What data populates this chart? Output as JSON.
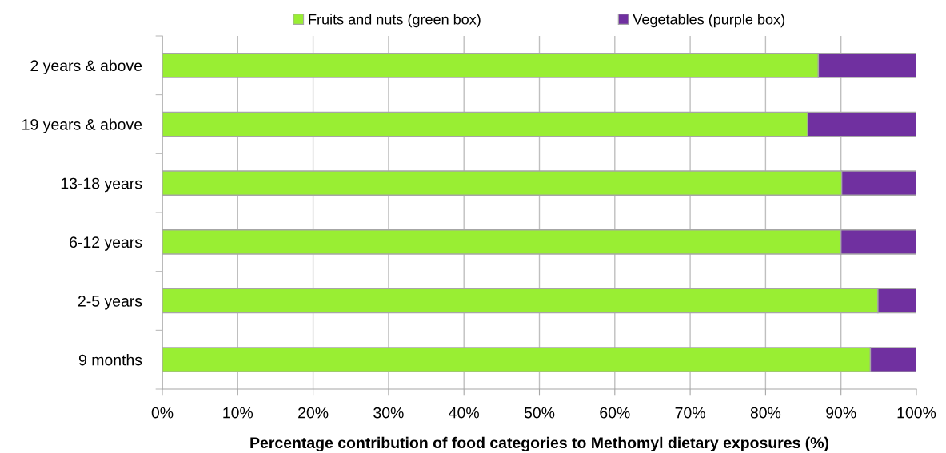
{
  "chart_data": {
    "type": "bar",
    "orientation": "horizontal",
    "stacked": true,
    "xlabel": "Percentage contribution of food categories to Methomyl dietary exposures (%)",
    "categories": [
      "2 years & above",
      "19 years & above",
      "13-18 years",
      "6-12 years",
      "2-5 years",
      "9 months"
    ],
    "series": [
      {
        "name": "Fruits and nuts (green box)",
        "color": "#99ee33",
        "values": [
          87.0,
          85.6,
          90.1,
          90.0,
          94.9,
          93.9
        ]
      },
      {
        "name": "Vegetables (purple box)",
        "color": "#7030a0",
        "values": [
          13.0,
          14.4,
          9.9,
          10.0,
          5.1,
          6.1
        ]
      }
    ],
    "xlim": [
      0,
      100
    ],
    "xticks": [
      {
        "value": 0,
        "label": "0%"
      },
      {
        "value": 10,
        "label": "10%"
      },
      {
        "value": 20,
        "label": "20%"
      },
      {
        "value": 30,
        "label": "30%"
      },
      {
        "value": 40,
        "label": "40%"
      },
      {
        "value": 50,
        "label": "50%"
      },
      {
        "value": 60,
        "label": "60%"
      },
      {
        "value": 70,
        "label": "70%"
      },
      {
        "value": 80,
        "label": "80%"
      },
      {
        "value": 90,
        "label": "90%"
      },
      {
        "value": 100,
        "label": "100%"
      }
    ],
    "grid": "x",
    "legend": "top"
  }
}
